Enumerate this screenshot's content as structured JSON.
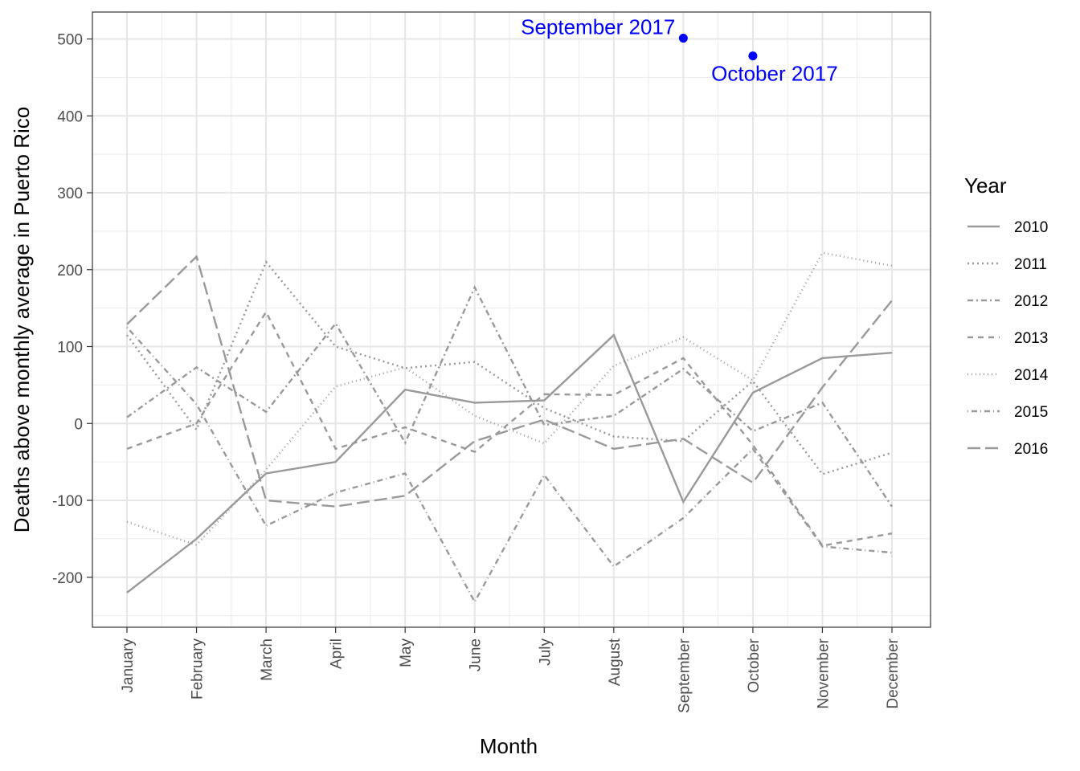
{
  "chart_data": {
    "type": "line",
    "xlabel": "Month",
    "ylabel": "Deaths above monthly average in Puerto Rico",
    "categories": [
      "January",
      "February",
      "March",
      "April",
      "May",
      "June",
      "July",
      "August",
      "September",
      "October",
      "November",
      "December"
    ],
    "ylim": [
      -265,
      535
    ],
    "yticks": [
      -200,
      -100,
      0,
      100,
      200,
      300,
      400,
      500
    ],
    "ytick_labels": [
      "-200",
      "-100",
      "0",
      "100",
      "200",
      "300",
      "400",
      "500"
    ],
    "grid": true,
    "legend": {
      "title": "Year",
      "position": "right"
    },
    "series": [
      {
        "name": "2010",
        "dash": "",
        "values": [
          -220,
          -150,
          -65,
          -50,
          44,
          27,
          30,
          115,
          -102,
          40,
          85,
          92
        ]
      },
      {
        "name": "2011",
        "dash": "2,4",
        "values": [
          115,
          -8,
          210,
          100,
          72,
          80,
          20,
          -17,
          -23,
          55,
          -66,
          -38
        ]
      },
      {
        "name": "2012",
        "dash": "7,4,2,4",
        "values": [
          8,
          73,
          15,
          130,
          -25,
          177,
          -2,
          10,
          71,
          -10,
          27,
          -108
        ]
      },
      {
        "name": "2013",
        "dash": "7,6",
        "values": [
          -33,
          0,
          145,
          -33,
          -5,
          -37,
          38,
          37,
          85,
          -28,
          -159,
          -143
        ]
      },
      {
        "name": "2014",
        "dash": "1,4",
        "values": [
          -128,
          -158,
          -60,
          48,
          73,
          10,
          -26,
          75,
          112,
          56,
          222,
          205
        ]
      },
      {
        "name": "2015",
        "dash": "1,4,7,4",
        "values": [
          125,
          25,
          -133,
          -90,
          -65,
          -232,
          -67,
          -186,
          -123,
          -33,
          -160,
          -168
        ]
      },
      {
        "name": "2016",
        "dash": "16,6",
        "values": [
          129,
          217,
          -100,
          -108,
          -94,
          -23,
          5,
          -33,
          -20,
          -77,
          47,
          160
        ]
      }
    ],
    "highlights": [
      {
        "label": "September 2017",
        "category": "September",
        "value": 501,
        "color": "#0000ff"
      },
      {
        "label": "October 2017",
        "category": "October",
        "value": 478,
        "color": "#0000ff"
      }
    ],
    "line_color": "#999999"
  }
}
